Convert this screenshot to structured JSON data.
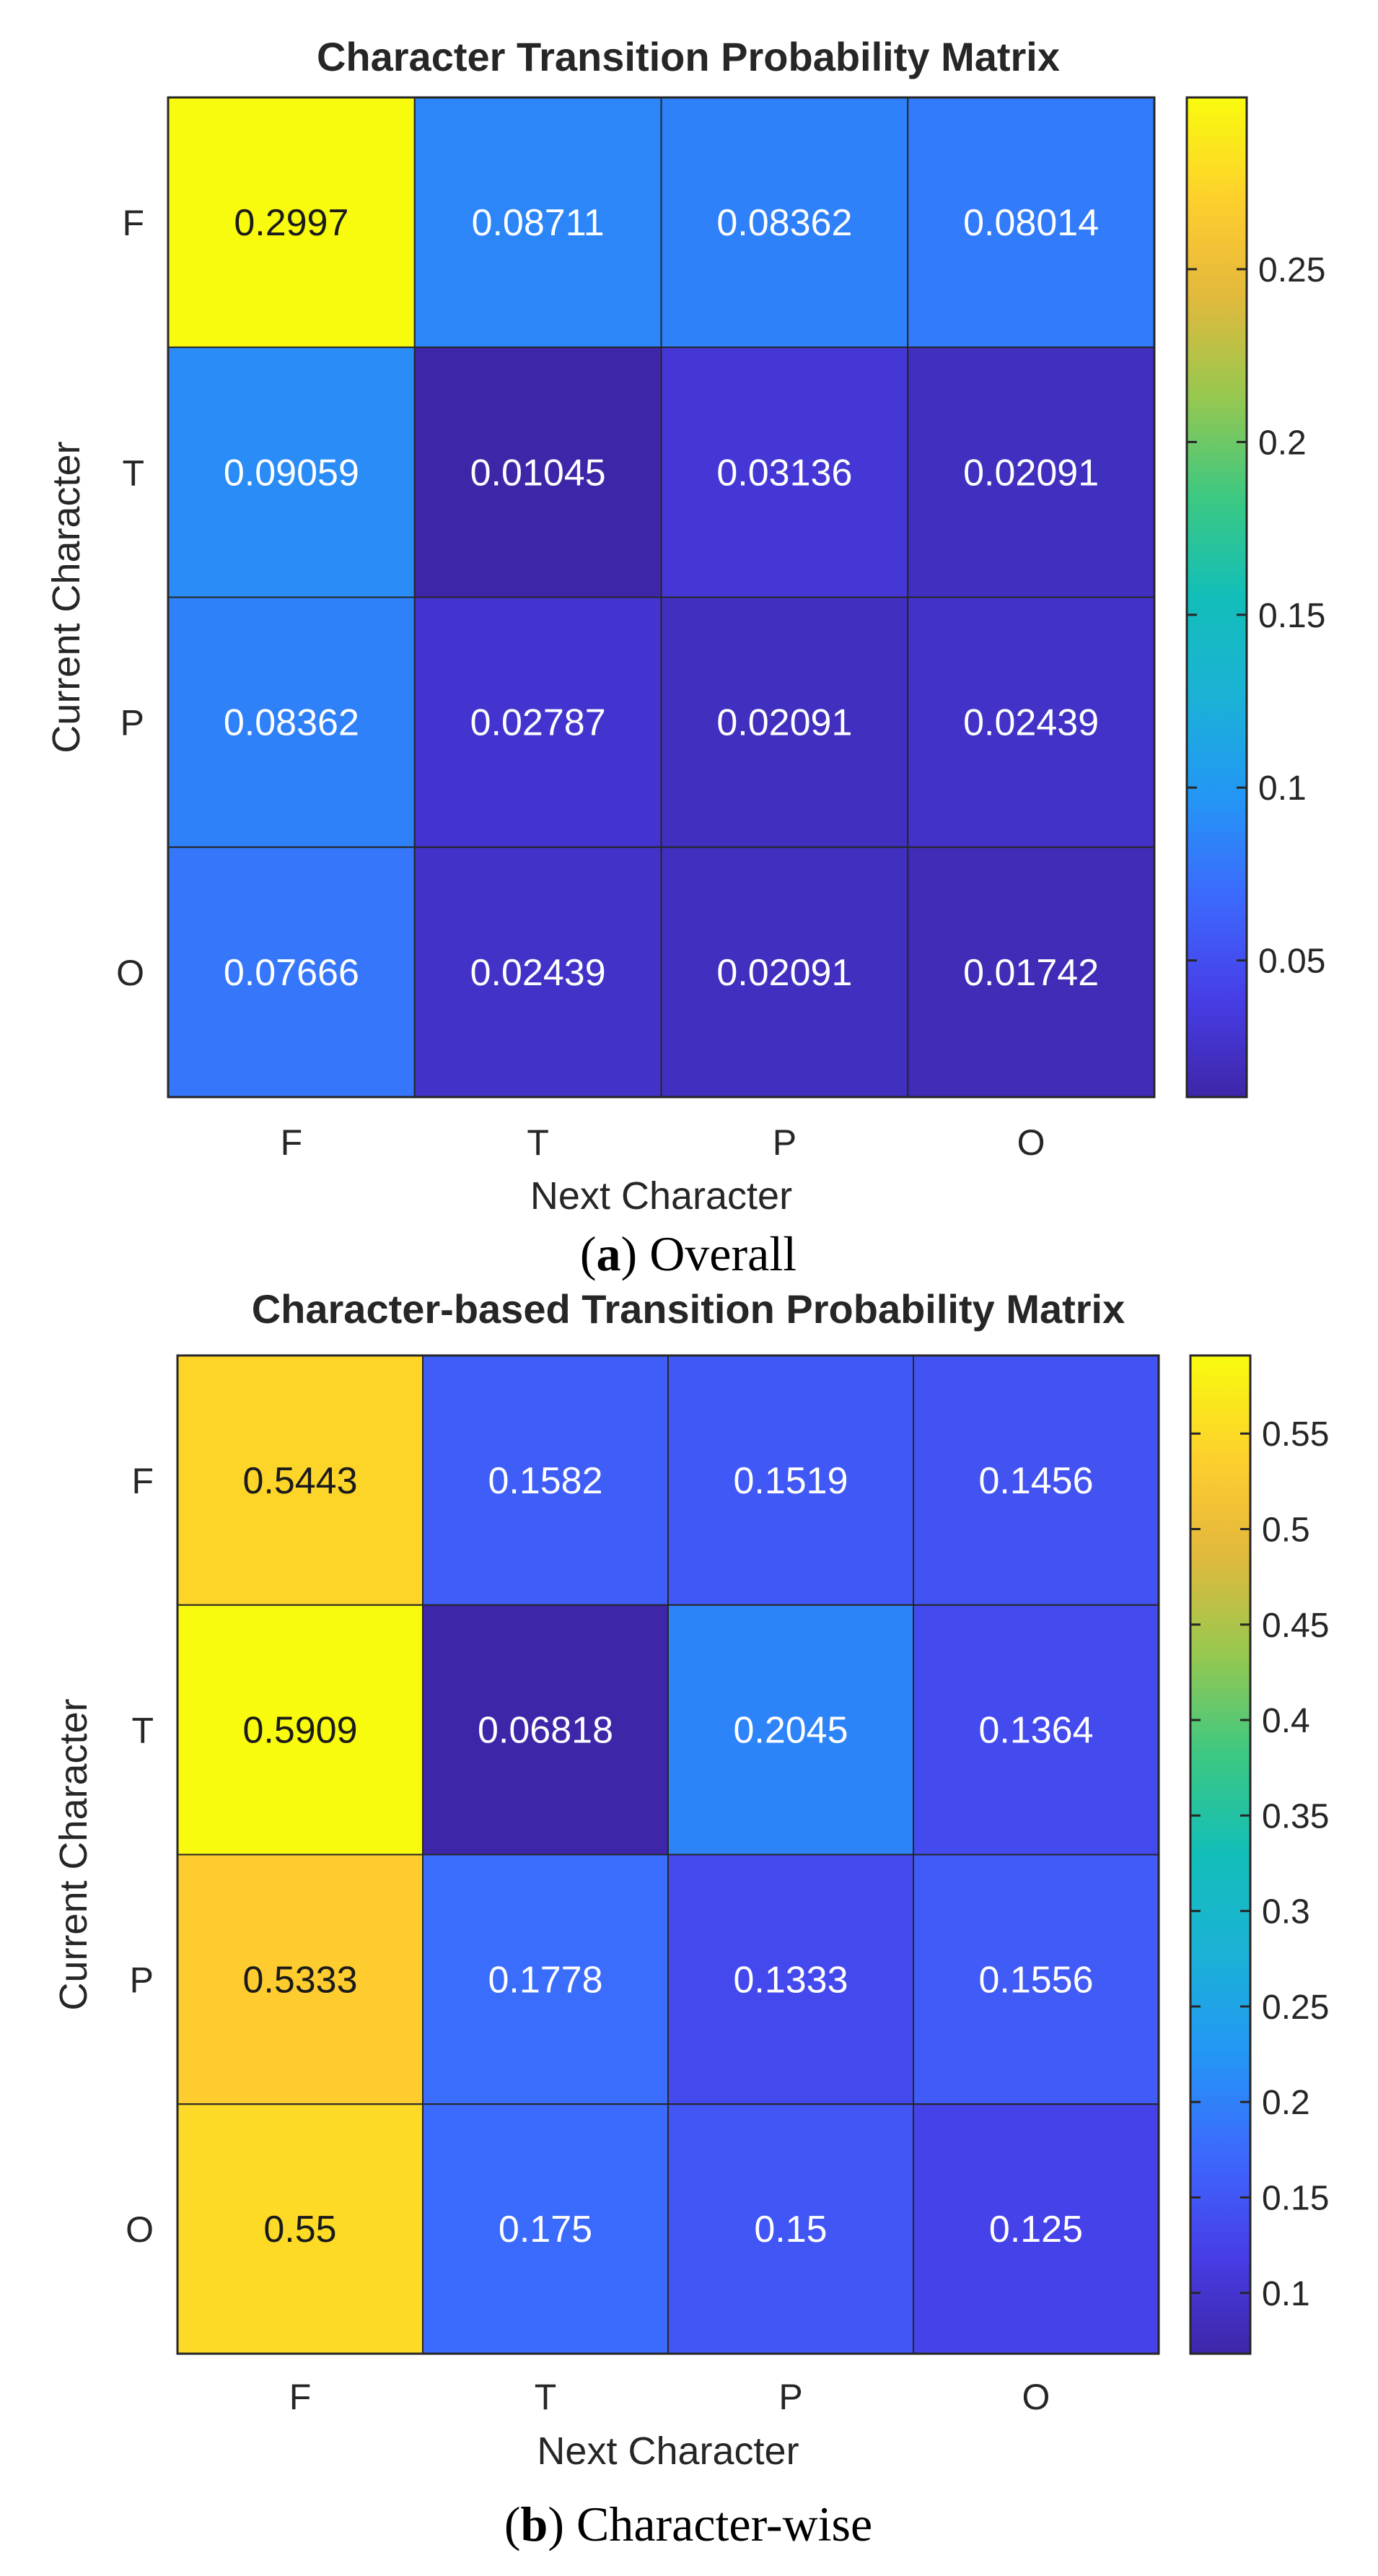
{
  "chart_data": [
    {
      "type": "heatmap",
      "title": "Character Transition Probability Matrix",
      "xlabel": "Next Character",
      "ylabel": "Current Character",
      "x_categories": [
        "F",
        "T",
        "P",
        "O"
      ],
      "y_categories": [
        "F",
        "T",
        "P",
        "O"
      ],
      "values": [
        [
          0.2997,
          0.08711,
          0.08362,
          0.08014
        ],
        [
          0.09059,
          0.01045,
          0.03136,
          0.02091
        ],
        [
          0.08362,
          0.02787,
          0.02091,
          0.02439
        ],
        [
          0.07666,
          0.02439,
          0.02091,
          0.01742
        ]
      ],
      "value_labels": [
        [
          "0.2997",
          "0.08711",
          "0.08362",
          "0.08014"
        ],
        [
          "0.09059",
          "0.01045",
          "0.03136",
          "0.02091"
        ],
        [
          "0.08362",
          "0.02787",
          "0.02091",
          "0.02439"
        ],
        [
          "0.07666",
          "0.02439",
          "0.02091",
          "0.01742"
        ]
      ],
      "colormap": "parula",
      "clim": [
        0.01045,
        0.2997
      ],
      "colorbar_ticks": [
        0.05,
        0.1,
        0.15,
        0.2,
        0.25
      ],
      "colorbar_tick_labels": [
        "0.05",
        "0.1",
        "0.15",
        "0.2",
        "0.25"
      ],
      "caption_letter": "a",
      "caption_text": "Overall"
    },
    {
      "type": "heatmap",
      "title": "Character-based Transition Probability Matrix",
      "xlabel": "Next Character",
      "ylabel": "Current Character",
      "x_categories": [
        "F",
        "T",
        "P",
        "O"
      ],
      "y_categories": [
        "F",
        "T",
        "P",
        "O"
      ],
      "values": [
        [
          0.5443,
          0.1582,
          0.1519,
          0.1456
        ],
        [
          0.5909,
          0.06818,
          0.2045,
          0.1364
        ],
        [
          0.5333,
          0.1778,
          0.1333,
          0.1556
        ],
        [
          0.55,
          0.175,
          0.15,
          0.125
        ]
      ],
      "value_labels": [
        [
          "0.5443",
          "0.1582",
          "0.1519",
          "0.1456"
        ],
        [
          "0.5909",
          "0.06818",
          "0.2045",
          "0.1364"
        ],
        [
          "0.5333",
          "0.1778",
          "0.1333",
          "0.1556"
        ],
        [
          "0.55",
          "0.175",
          "0.15",
          "0.125"
        ]
      ],
      "colormap": "parula",
      "clim": [
        0.06818,
        0.5909
      ],
      "colorbar_ticks": [
        0.1,
        0.15,
        0.2,
        0.25,
        0.3,
        0.35,
        0.4,
        0.45,
        0.5,
        0.55
      ],
      "colorbar_tick_labels": [
        "0.1",
        "0.15",
        "0.2",
        "0.25",
        "0.3",
        "0.35",
        "0.4",
        "0.45",
        "0.5",
        "0.55"
      ],
      "caption_letter": "b",
      "caption_text": "Character-wise"
    }
  ]
}
